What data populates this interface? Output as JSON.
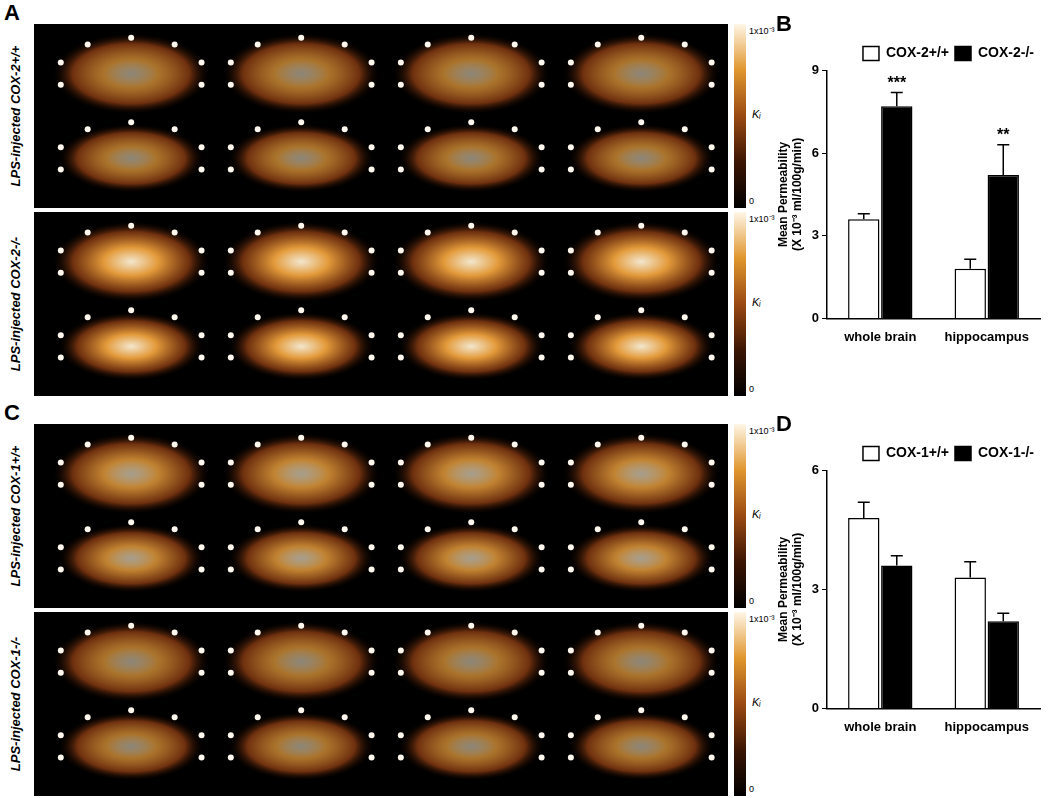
{
  "images": [
    {
      "panel": "A",
      "rows": [
        {
          "label": "LPS-injected COX-2+/+"
        },
        {
          "label": "LPS-injected COX-2-/-"
        }
      ]
    },
    {
      "panel": "C",
      "rows": [
        {
          "label": "LPS-injected COX-1+/+"
        },
        {
          "label": "LPS-injected COX-1-/-"
        }
      ]
    }
  ],
  "colorbar": {
    "label": "Kᵢ",
    "range": [
      0,
      0.001
    ],
    "ticks": [
      {
        "value": 0,
        "label": "0"
      },
      {
        "value": 0.001,
        "label": "1x10⁻³"
      }
    ]
  },
  "chart_data": [
    {
      "type": "bar",
      "title": "B",
      "y_label": [
        "Mean Permeability",
        "(X 10⁻³ ml/100g/min)"
      ],
      "categories": [
        "whole brain",
        "hippocampus"
      ],
      "series": [
        {
          "name": "COX-2+/+",
          "color": "#ffffff",
          "values": [
            3.6,
            1.8
          ],
          "errors": [
            0.2,
            0.35
          ]
        },
        {
          "name": "COX-2-/-",
          "color": "#000000",
          "values": [
            7.7,
            5.2
          ],
          "errors": [
            0.5,
            1.1
          ]
        }
      ],
      "annotations": [
        {
          "text": "***",
          "series": "COX-2-/-",
          "category": "whole brain"
        },
        {
          "text": "**",
          "series": "COX-2-/-",
          "category": "hippocampus"
        }
      ],
      "ylim": [
        0,
        9
      ],
      "yticks": [
        0,
        3,
        6,
        9
      ],
      "grid": false,
      "legend": "upper right"
    },
    {
      "type": "bar",
      "title": "D",
      "y_label": [
        "Mean Permeability",
        "(X 10⁻³ ml/100g/min)"
      ],
      "categories": [
        "whole brain",
        "hippocampus"
      ],
      "series": [
        {
          "name": "COX-1+/+",
          "color": "#ffffff",
          "values": [
            4.8,
            3.3
          ],
          "errors": [
            0.4,
            0.4
          ]
        },
        {
          "name": "COX-1-/-",
          "color": "#000000",
          "values": [
            3.6,
            2.2
          ],
          "errors": [
            0.25,
            0.2
          ]
        }
      ],
      "ylim": [
        0,
        6
      ],
      "yticks": [
        0,
        3,
        6
      ],
      "grid": false,
      "legend": "upper right"
    }
  ]
}
